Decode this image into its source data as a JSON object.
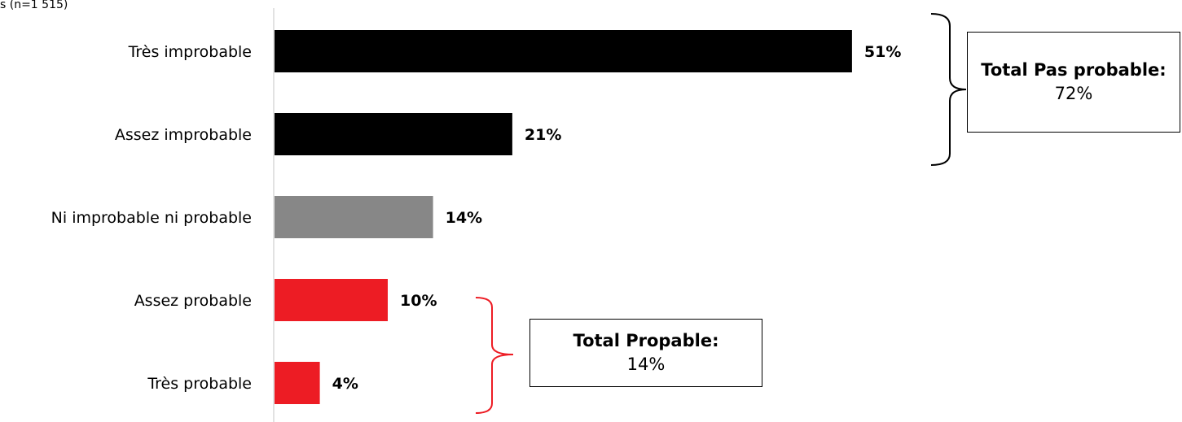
{
  "chart_data": {
    "type": "bar",
    "orientation": "horizontal",
    "subtitle": "s (n=1 515)",
    "categories": [
      "Très improbable",
      "Assez improbable",
      "Ni improbable ni probable",
      "Assez probable",
      "Très probable"
    ],
    "values": [
      51,
      21,
      14,
      10,
      4
    ],
    "value_labels": [
      "51%",
      "21%",
      "14%",
      "10%",
      "4%"
    ],
    "colors": [
      "#000000",
      "#000000",
      "#878787",
      "#ed1c24",
      "#ed1c24"
    ],
    "xlim": [
      0,
      60
    ],
    "grid": false,
    "annotations": [
      {
        "label": "Total Pas probable:",
        "value": "72%",
        "groups": [
          "Très improbable",
          "Assez improbable"
        ]
      },
      {
        "label": "Total Propable:",
        "value": "14%",
        "groups": [
          "Assez probable",
          "Très probable"
        ]
      }
    ]
  },
  "colors": {
    "bracket_dark": "#000000",
    "bracket_red": "#ed1c24",
    "axis": "#d9d9d9"
  }
}
